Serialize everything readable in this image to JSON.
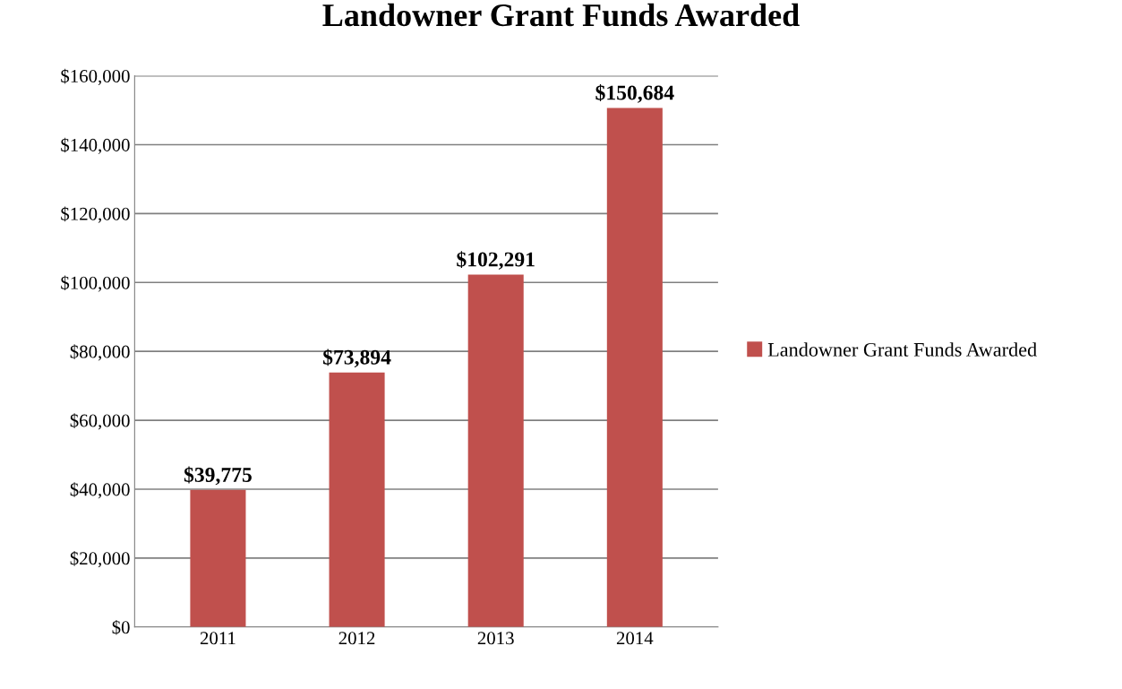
{
  "chart_data": {
    "type": "bar",
    "title": "Landowner Grant Funds Awarded",
    "categories": [
      "2011",
      "2012",
      "2013",
      "2014"
    ],
    "series": [
      {
        "name": "Landowner Grant Funds Awarded",
        "color": "#c0504d",
        "values": [
          39775,
          73894,
          102291,
          150684
        ],
        "value_labels": [
          "$39,775",
          "$73,894",
          "$102,291",
          "$150,684"
        ]
      }
    ],
    "ylim": [
      0,
      160000
    ],
    "yticks": [
      {
        "value": 0,
        "label": "$0"
      },
      {
        "value": 20000,
        "label": "$20,000"
      },
      {
        "value": 40000,
        "label": "$40,000"
      },
      {
        "value": 60000,
        "label": "$60,000"
      },
      {
        "value": 80000,
        "label": "$80,000"
      },
      {
        "value": 100000,
        "label": "$100,000"
      },
      {
        "value": 120000,
        "label": "$120,000"
      },
      {
        "value": 140000,
        "label": "$140,000"
      },
      {
        "value": 160000,
        "label": "$160,000"
      }
    ],
    "grid": "y",
    "legend": "right"
  }
}
